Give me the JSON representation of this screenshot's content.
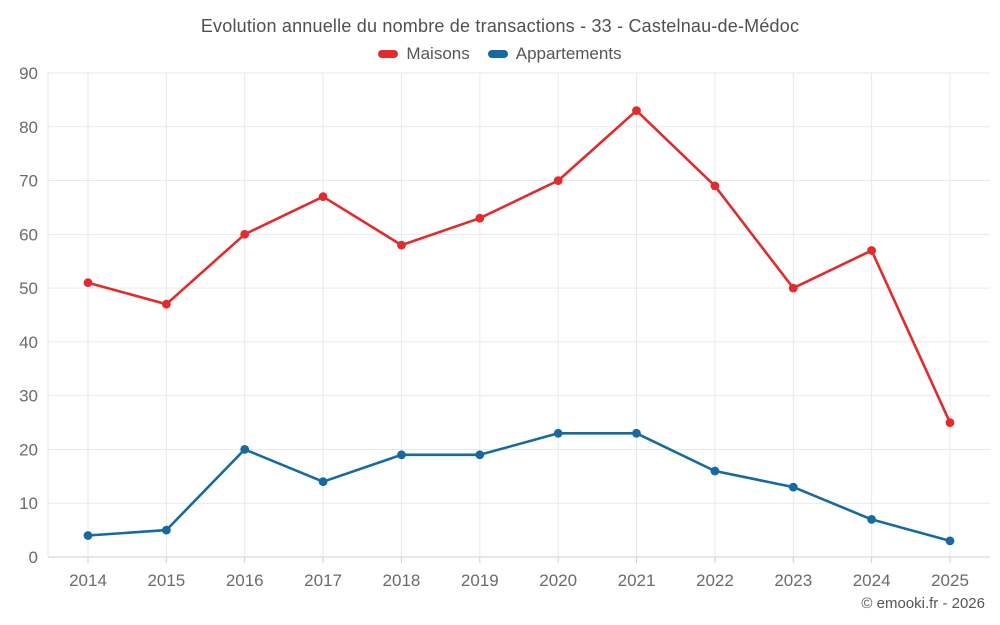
{
  "header": {
    "title": "Evolution annuelle du nombre de transactions - 33 - Castelnau-de-Médoc"
  },
  "footer": {
    "attribution": "© emooki.fr - 2026"
  },
  "colors": {
    "grid": "#e9e9e9",
    "axis": "#cfcfcf",
    "tick_label": "#6b6b6b",
    "title_text": "#4f4f4f",
    "legend_text": "#565656",
    "maisons": "#e02c2c",
    "appartements": "#17699e"
  },
  "chart_data": {
    "type": "line",
    "title": "Evolution annuelle du nombre de transactions - 33 - Castelnau-de-Médoc",
    "categories": [
      "2014",
      "2015",
      "2016",
      "2017",
      "2018",
      "2019",
      "2020",
      "2021",
      "2022",
      "2023",
      "2024",
      "2025"
    ],
    "series": [
      {
        "name": "Maisons",
        "color": "#e02c2c",
        "values": [
          51,
          47,
          60,
          67,
          58,
          63,
          70,
          83,
          69,
          50,
          57,
          25
        ]
      },
      {
        "name": "Appartements",
        "color": "#17699e",
        "values": [
          4,
          5,
          20,
          14,
          19,
          19,
          23,
          23,
          16,
          13,
          7,
          3
        ]
      }
    ],
    "xlabel": "",
    "ylabel": "",
    "ylim": [
      0,
      90
    ],
    "ytick_step": 10,
    "yticks": [
      0,
      10,
      20,
      30,
      40,
      50,
      60,
      70,
      80,
      90
    ],
    "grid": true,
    "legend_position": "top",
    "markers": true
  }
}
